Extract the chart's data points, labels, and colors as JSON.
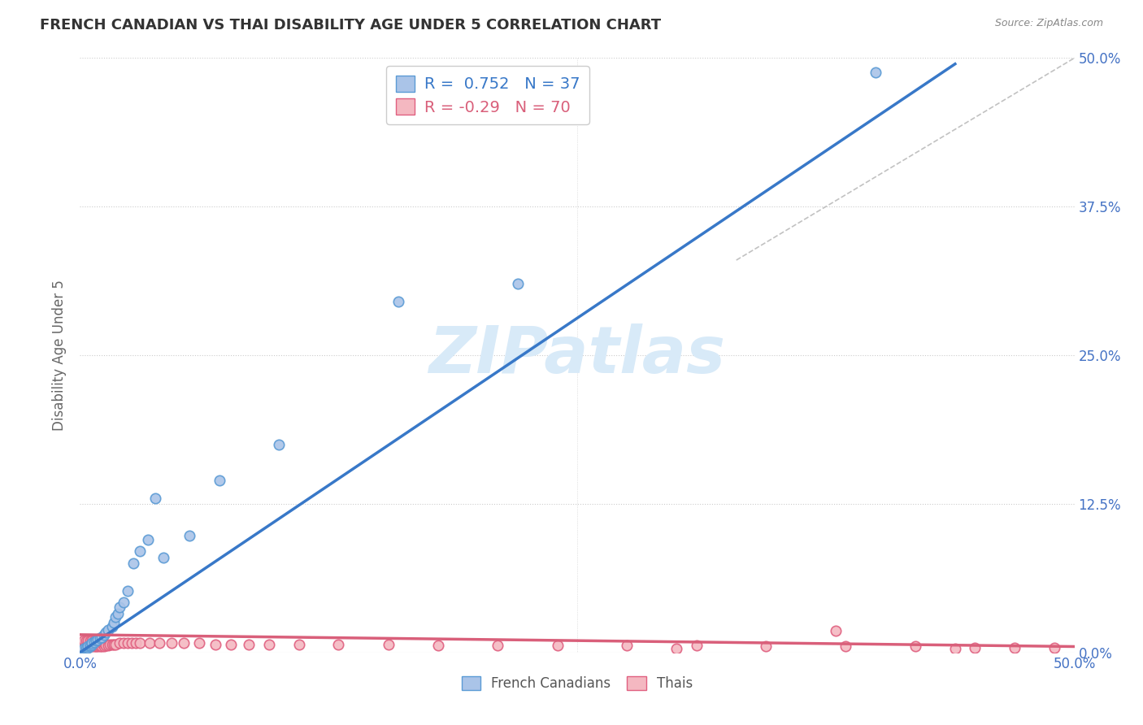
{
  "title": "FRENCH CANADIAN VS THAI DISABILITY AGE UNDER 5 CORRELATION CHART",
  "source": "Source: ZipAtlas.com",
  "ylabel": "Disability Age Under 5",
  "xlim": [
    0.0,
    0.5
  ],
  "ylim": [
    0.0,
    0.5
  ],
  "grid_color": "#cccccc",
  "background_color": "#ffffff",
  "fc_color": "#aac4e8",
  "fc_edge_color": "#5b9bd5",
  "thai_color": "#f4b8c1",
  "thai_edge_color": "#e06080",
  "fc_R": 0.752,
  "fc_N": 37,
  "thai_R": -0.29,
  "thai_N": 70,
  "fc_line_color": "#3878c8",
  "thai_line_color": "#d95f7a",
  "diag_line_color": "#bbbbbb",
  "watermark_color": "#d8eaf8",
  "legend_label_fc": "French Canadians",
  "legend_label_thai": "Thais",
  "fc_line_x0": 0.0,
  "fc_line_y0": 0.0,
  "fc_line_x1": 0.44,
  "fc_line_y1": 0.495,
  "thai_line_x0": 0.0,
  "thai_line_y0": 0.015,
  "thai_line_x1": 0.5,
  "thai_line_y1": 0.005,
  "diag_line_x0": 0.33,
  "diag_line_y0": 0.33,
  "diag_line_x1": 0.5,
  "diag_line_y1": 0.5,
  "fc_points_x": [
    0.001,
    0.002,
    0.002,
    0.003,
    0.003,
    0.004,
    0.004,
    0.005,
    0.005,
    0.006,
    0.006,
    0.007,
    0.008,
    0.009,
    0.01,
    0.011,
    0.012,
    0.013,
    0.014,
    0.016,
    0.017,
    0.018,
    0.019,
    0.02,
    0.022,
    0.024,
    0.027,
    0.03,
    0.034,
    0.038,
    0.042,
    0.055,
    0.07,
    0.1,
    0.16,
    0.22,
    0.4
  ],
  "fc_points_y": [
    0.001,
    0.002,
    0.003,
    0.003,
    0.004,
    0.004,
    0.005,
    0.005,
    0.006,
    0.007,
    0.008,
    0.009,
    0.01,
    0.011,
    0.012,
    0.013,
    0.015,
    0.017,
    0.019,
    0.022,
    0.025,
    0.03,
    0.033,
    0.038,
    0.042,
    0.052,
    0.075,
    0.085,
    0.095,
    0.13,
    0.08,
    0.098,
    0.145,
    0.175,
    0.295,
    0.31,
    0.488
  ],
  "thai_points_x": [
    0.001,
    0.001,
    0.002,
    0.002,
    0.002,
    0.003,
    0.003,
    0.003,
    0.004,
    0.004,
    0.004,
    0.005,
    0.005,
    0.005,
    0.006,
    0.006,
    0.006,
    0.007,
    0.007,
    0.007,
    0.008,
    0.008,
    0.008,
    0.009,
    0.009,
    0.009,
    0.01,
    0.01,
    0.011,
    0.011,
    0.012,
    0.012,
    0.013,
    0.014,
    0.015,
    0.016,
    0.017,
    0.018,
    0.02,
    0.022,
    0.024,
    0.026,
    0.028,
    0.03,
    0.035,
    0.04,
    0.046,
    0.052,
    0.06,
    0.068,
    0.076,
    0.085,
    0.095,
    0.11,
    0.13,
    0.155,
    0.18,
    0.21,
    0.24,
    0.275,
    0.31,
    0.345,
    0.385,
    0.42,
    0.45,
    0.47,
    0.49,
    0.38,
    0.3,
    0.44
  ],
  "thai_points_y": [
    0.004,
    0.006,
    0.005,
    0.008,
    0.01,
    0.005,
    0.007,
    0.01,
    0.005,
    0.007,
    0.01,
    0.005,
    0.007,
    0.01,
    0.005,
    0.007,
    0.01,
    0.005,
    0.007,
    0.01,
    0.005,
    0.007,
    0.01,
    0.005,
    0.007,
    0.01,
    0.005,
    0.008,
    0.005,
    0.008,
    0.005,
    0.008,
    0.006,
    0.006,
    0.007,
    0.007,
    0.007,
    0.007,
    0.008,
    0.008,
    0.008,
    0.008,
    0.008,
    0.008,
    0.008,
    0.008,
    0.008,
    0.008,
    0.008,
    0.007,
    0.007,
    0.007,
    0.007,
    0.007,
    0.007,
    0.007,
    0.006,
    0.006,
    0.006,
    0.006,
    0.006,
    0.005,
    0.005,
    0.005,
    0.004,
    0.004,
    0.004,
    0.018,
    0.003,
    0.003
  ]
}
